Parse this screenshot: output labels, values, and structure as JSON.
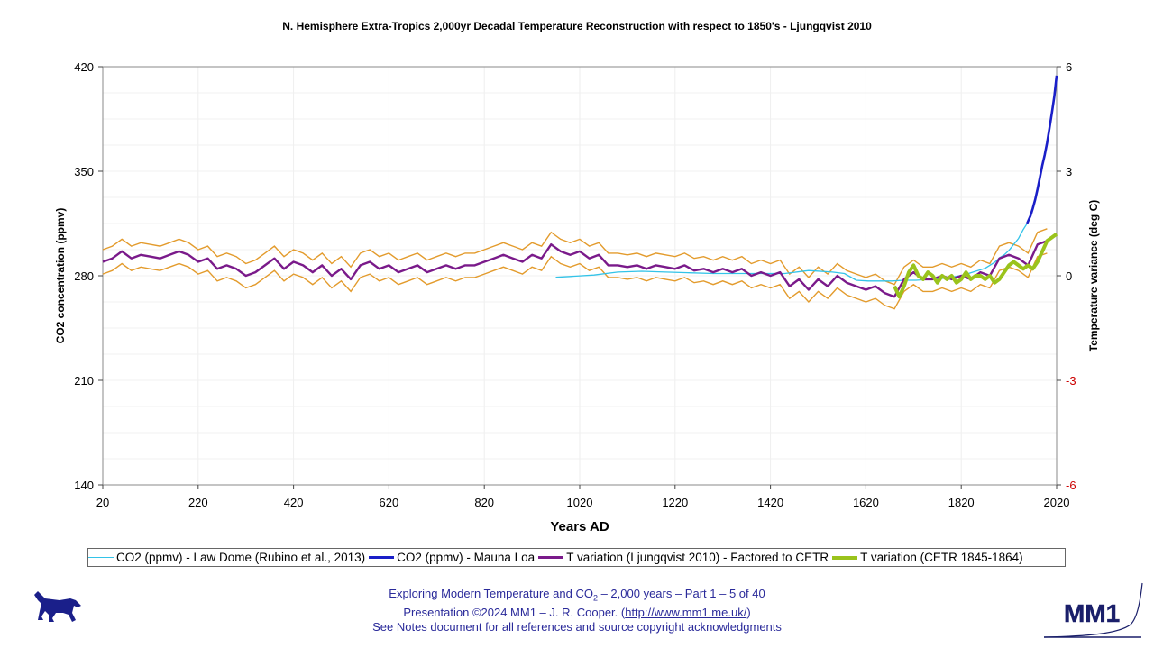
{
  "chart_data": {
    "type": "line",
    "title": "N. Hemisphere Extra-Tropics 2,000yr Decadal Temperature Reconstruction with respect to 1850's - Ljungqvist 2010",
    "xlabel": "Years AD",
    "ylabel_left": "CO2 concentration (ppmv)",
    "ylabel_right": "Temperature variance (deg C)",
    "xlim": [
      20,
      2020
    ],
    "ylim_left": [
      140,
      420
    ],
    "ylim_right": [
      -6,
      6
    ],
    "x_ticks": [
      "20",
      "220",
      "420",
      "620",
      "820",
      "1020",
      "1220",
      "1420",
      "1620",
      "1820",
      "2020"
    ],
    "y_left_ticks": [
      "140",
      "210",
      "280",
      "350",
      "420"
    ],
    "y_right_ticks": [
      "-6",
      "-3",
      "0",
      "3",
      "6"
    ],
    "grid": true,
    "legend_placement": "bottom",
    "series": [
      {
        "name": "CO2 (ppmv) - Law Dome (Rubino et al., 2013)",
        "axis": "left",
        "color": "#33c3e8",
        "width": 1.3,
        "x": [
          970,
          1000,
          1050,
          1100,
          1150,
          1200,
          1250,
          1300,
          1350,
          1400,
          1450,
          1500,
          1550,
          1575,
          1600,
          1625,
          1650,
          1675,
          1700,
          1725,
          1750,
          1775,
          1800,
          1825,
          1850,
          1860,
          1870,
          1880,
          1890,
          1900,
          1910,
          1920,
          1930,
          1940,
          1950,
          1960
        ],
        "y": [
          279,
          279.5,
          280.5,
          282.5,
          283,
          282.5,
          282,
          281.5,
          281.5,
          281.5,
          281.5,
          283.5,
          282.5,
          281.5,
          277,
          276.5,
          276.5,
          276.5,
          277,
          277,
          277.5,
          278,
          279,
          280.5,
          283,
          284,
          285,
          287,
          289,
          292,
          294,
          297,
          301,
          305,
          311,
          316
        ]
      },
      {
        "name": "CO2 (ppmv) - Mauna Loa",
        "axis": "left",
        "color": "#1a1fc8",
        "width": 2.6,
        "x": [
          1958,
          1965,
          1970,
          1975,
          1980,
          1985,
          1990,
          1995,
          2000,
          2005,
          2010,
          2015,
          2020
        ],
        "y": [
          315,
          320,
          325,
          331,
          338,
          346,
          354,
          361,
          369,
          379,
          389,
          400,
          414
        ]
      },
      {
        "name": "T variation (Ljungqvist 2010) - Factored to CETR",
        "axis": "right",
        "color": "#7a1a8a",
        "width": 2.4,
        "x": [
          20,
          40,
          60,
          80,
          100,
          120,
          140,
          160,
          180,
          200,
          220,
          240,
          260,
          280,
          300,
          320,
          340,
          360,
          380,
          400,
          420,
          440,
          460,
          480,
          500,
          520,
          540,
          560,
          580,
          600,
          620,
          640,
          660,
          680,
          700,
          720,
          740,
          760,
          780,
          800,
          820,
          840,
          860,
          880,
          900,
          920,
          940,
          960,
          980,
          1000,
          1020,
          1040,
          1060,
          1080,
          1100,
          1120,
          1140,
          1160,
          1180,
          1200,
          1220,
          1240,
          1260,
          1280,
          1300,
          1320,
          1340,
          1360,
          1380,
          1400,
          1420,
          1440,
          1460,
          1480,
          1500,
          1520,
          1540,
          1560,
          1580,
          1600,
          1620,
          1640,
          1660,
          1680,
          1700,
          1720,
          1740,
          1760,
          1780,
          1800,
          1820,
          1840,
          1860,
          1880,
          1900,
          1920,
          1940,
          1960,
          1980,
          2000
        ],
        "y": [
          0.4,
          0.5,
          0.7,
          0.5,
          0.6,
          0.55,
          0.5,
          0.6,
          0.7,
          0.6,
          0.4,
          0.5,
          0.2,
          0.3,
          0.2,
          0.0,
          0.1,
          0.3,
          0.5,
          0.2,
          0.4,
          0.3,
          0.1,
          0.3,
          0.0,
          0.2,
          -0.1,
          0.3,
          0.4,
          0.2,
          0.3,
          0.1,
          0.2,
          0.3,
          0.1,
          0.2,
          0.3,
          0.2,
          0.3,
          0.3,
          0.4,
          0.5,
          0.6,
          0.5,
          0.4,
          0.6,
          0.5,
          0.9,
          0.7,
          0.6,
          0.7,
          0.5,
          0.6,
          0.3,
          0.3,
          0.25,
          0.3,
          0.2,
          0.3,
          0.25,
          0.2,
          0.3,
          0.15,
          0.2,
          0.1,
          0.2,
          0.1,
          0.2,
          0.0,
          0.1,
          0.0,
          0.1,
          -0.3,
          -0.1,
          -0.4,
          -0.1,
          -0.3,
          0.0,
          -0.2,
          -0.3,
          -0.4,
          -0.3,
          -0.5,
          -0.6,
          -0.1,
          0.1,
          -0.1,
          -0.1,
          0.0,
          -0.1,
          0.0,
          -0.1,
          0.1,
          0.0,
          0.5,
          0.6,
          0.5,
          0.3,
          0.9,
          1.0
        ]
      },
      {
        "name": "T variation (CETR 1845-1864)",
        "axis": "right",
        "color": "#9ac31c",
        "width": 4,
        "x": [
          1680,
          1690,
          1700,
          1710,
          1720,
          1730,
          1740,
          1750,
          1760,
          1770,
          1780,
          1790,
          1800,
          1810,
          1820,
          1830,
          1840,
          1850,
          1860,
          1870,
          1880,
          1890,
          1900,
          1910,
          1920,
          1930,
          1940,
          1950,
          1960,
          1970,
          1980,
          1990,
          2000,
          2010,
          2020
        ],
        "y": [
          -0.3,
          -0.6,
          -0.3,
          0.1,
          0.3,
          0.0,
          -0.1,
          0.1,
          0.0,
          -0.2,
          0.0,
          -0.1,
          0.0,
          -0.2,
          -0.1,
          0.1,
          -0.1,
          0.0,
          0.0,
          -0.1,
          0.0,
          -0.2,
          -0.1,
          0.1,
          0.3,
          0.4,
          0.3,
          0.2,
          0.3,
          0.2,
          0.4,
          0.7,
          1.0,
          1.1,
          1.2
        ]
      }
    ]
  },
  "legend": {
    "items": [
      {
        "label": "CO2 (ppmv) - Law Dome (Rubino et al., 2013)",
        "color": "#33c3e8"
      },
      {
        "label": "CO2 (ppmv) - Mauna Loa",
        "color": "#1a1fc8"
      },
      {
        "label": "T variation (Ljungqvist 2010) - Factored to CETR",
        "color": "#7a1a8a"
      },
      {
        "label": "T variation (CETR 1845-1864)",
        "color": "#9ac31c"
      }
    ]
  },
  "footer": {
    "line1_pre": "Exploring Modern Temperature and CO",
    "line1_sub": "2",
    "line1_post": " – 2,000 years – Part 1 – 5 of 40",
    "line2_pre": "Presentation ©2024 MM1 – J. R. Cooper. (",
    "line2_link": "http://www.mm1.me.uk/",
    "line2_post": ")",
    "line3": "See Notes document for all references and source copyright acknowledgments"
  },
  "logo": {
    "text": "MM1"
  }
}
